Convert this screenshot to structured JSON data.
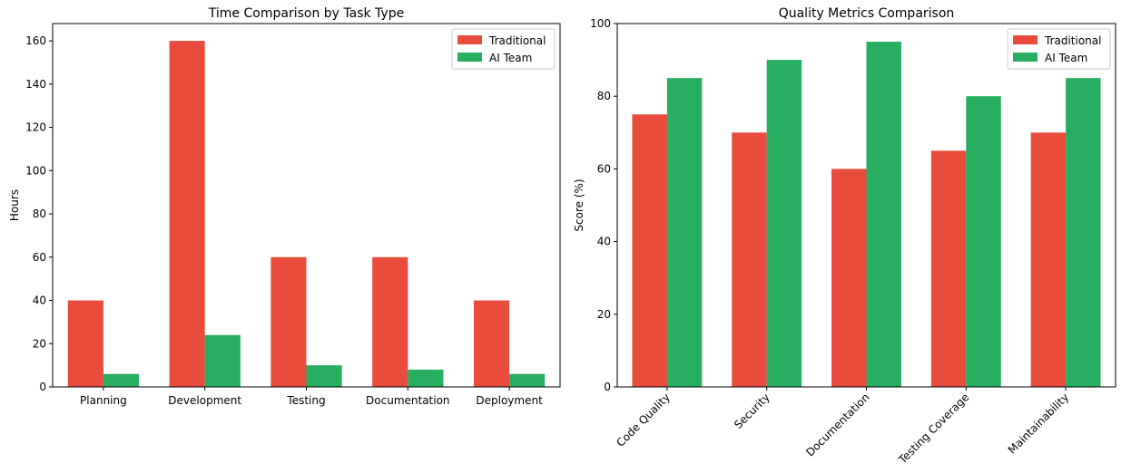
{
  "colors": {
    "traditional": "#e74c3c",
    "ai_team": "#27ae60"
  },
  "chart_data": [
    {
      "type": "bar",
      "title": "Time Comparison by Task Type",
      "xlabel": "",
      "ylabel": "Hours",
      "categories": [
        "Planning",
        "Development",
        "Testing",
        "Documentation",
        "Deployment"
      ],
      "series": [
        {
          "name": "Traditional",
          "values": [
            40,
            160,
            60,
            60,
            40
          ]
        },
        {
          "name": "AI Team",
          "values": [
            6,
            24,
            10,
            8,
            6
          ]
        }
      ],
      "ylim": [
        0,
        168
      ],
      "yticks": [
        0,
        20,
        40,
        60,
        80,
        100,
        120,
        140,
        160
      ],
      "xtick_rotation": 0,
      "legend": "top-right",
      "grid": false
    },
    {
      "type": "bar",
      "title": "Quality Metrics Comparison",
      "xlabel": "",
      "ylabel": "Score (%)",
      "categories": [
        "Code Quality",
        "Security",
        "Documentation",
        "Testing Coverage",
        "Maintainability"
      ],
      "series": [
        {
          "name": "Traditional",
          "values": [
            75,
            70,
            60,
            65,
            70
          ]
        },
        {
          "name": "AI Team",
          "values": [
            85,
            90,
            95,
            80,
            85
          ]
        }
      ],
      "ylim": [
        0,
        100
      ],
      "yticks": [
        0,
        20,
        40,
        60,
        80,
        100
      ],
      "xtick_rotation": -45,
      "legend": "top-right",
      "grid": false
    }
  ]
}
